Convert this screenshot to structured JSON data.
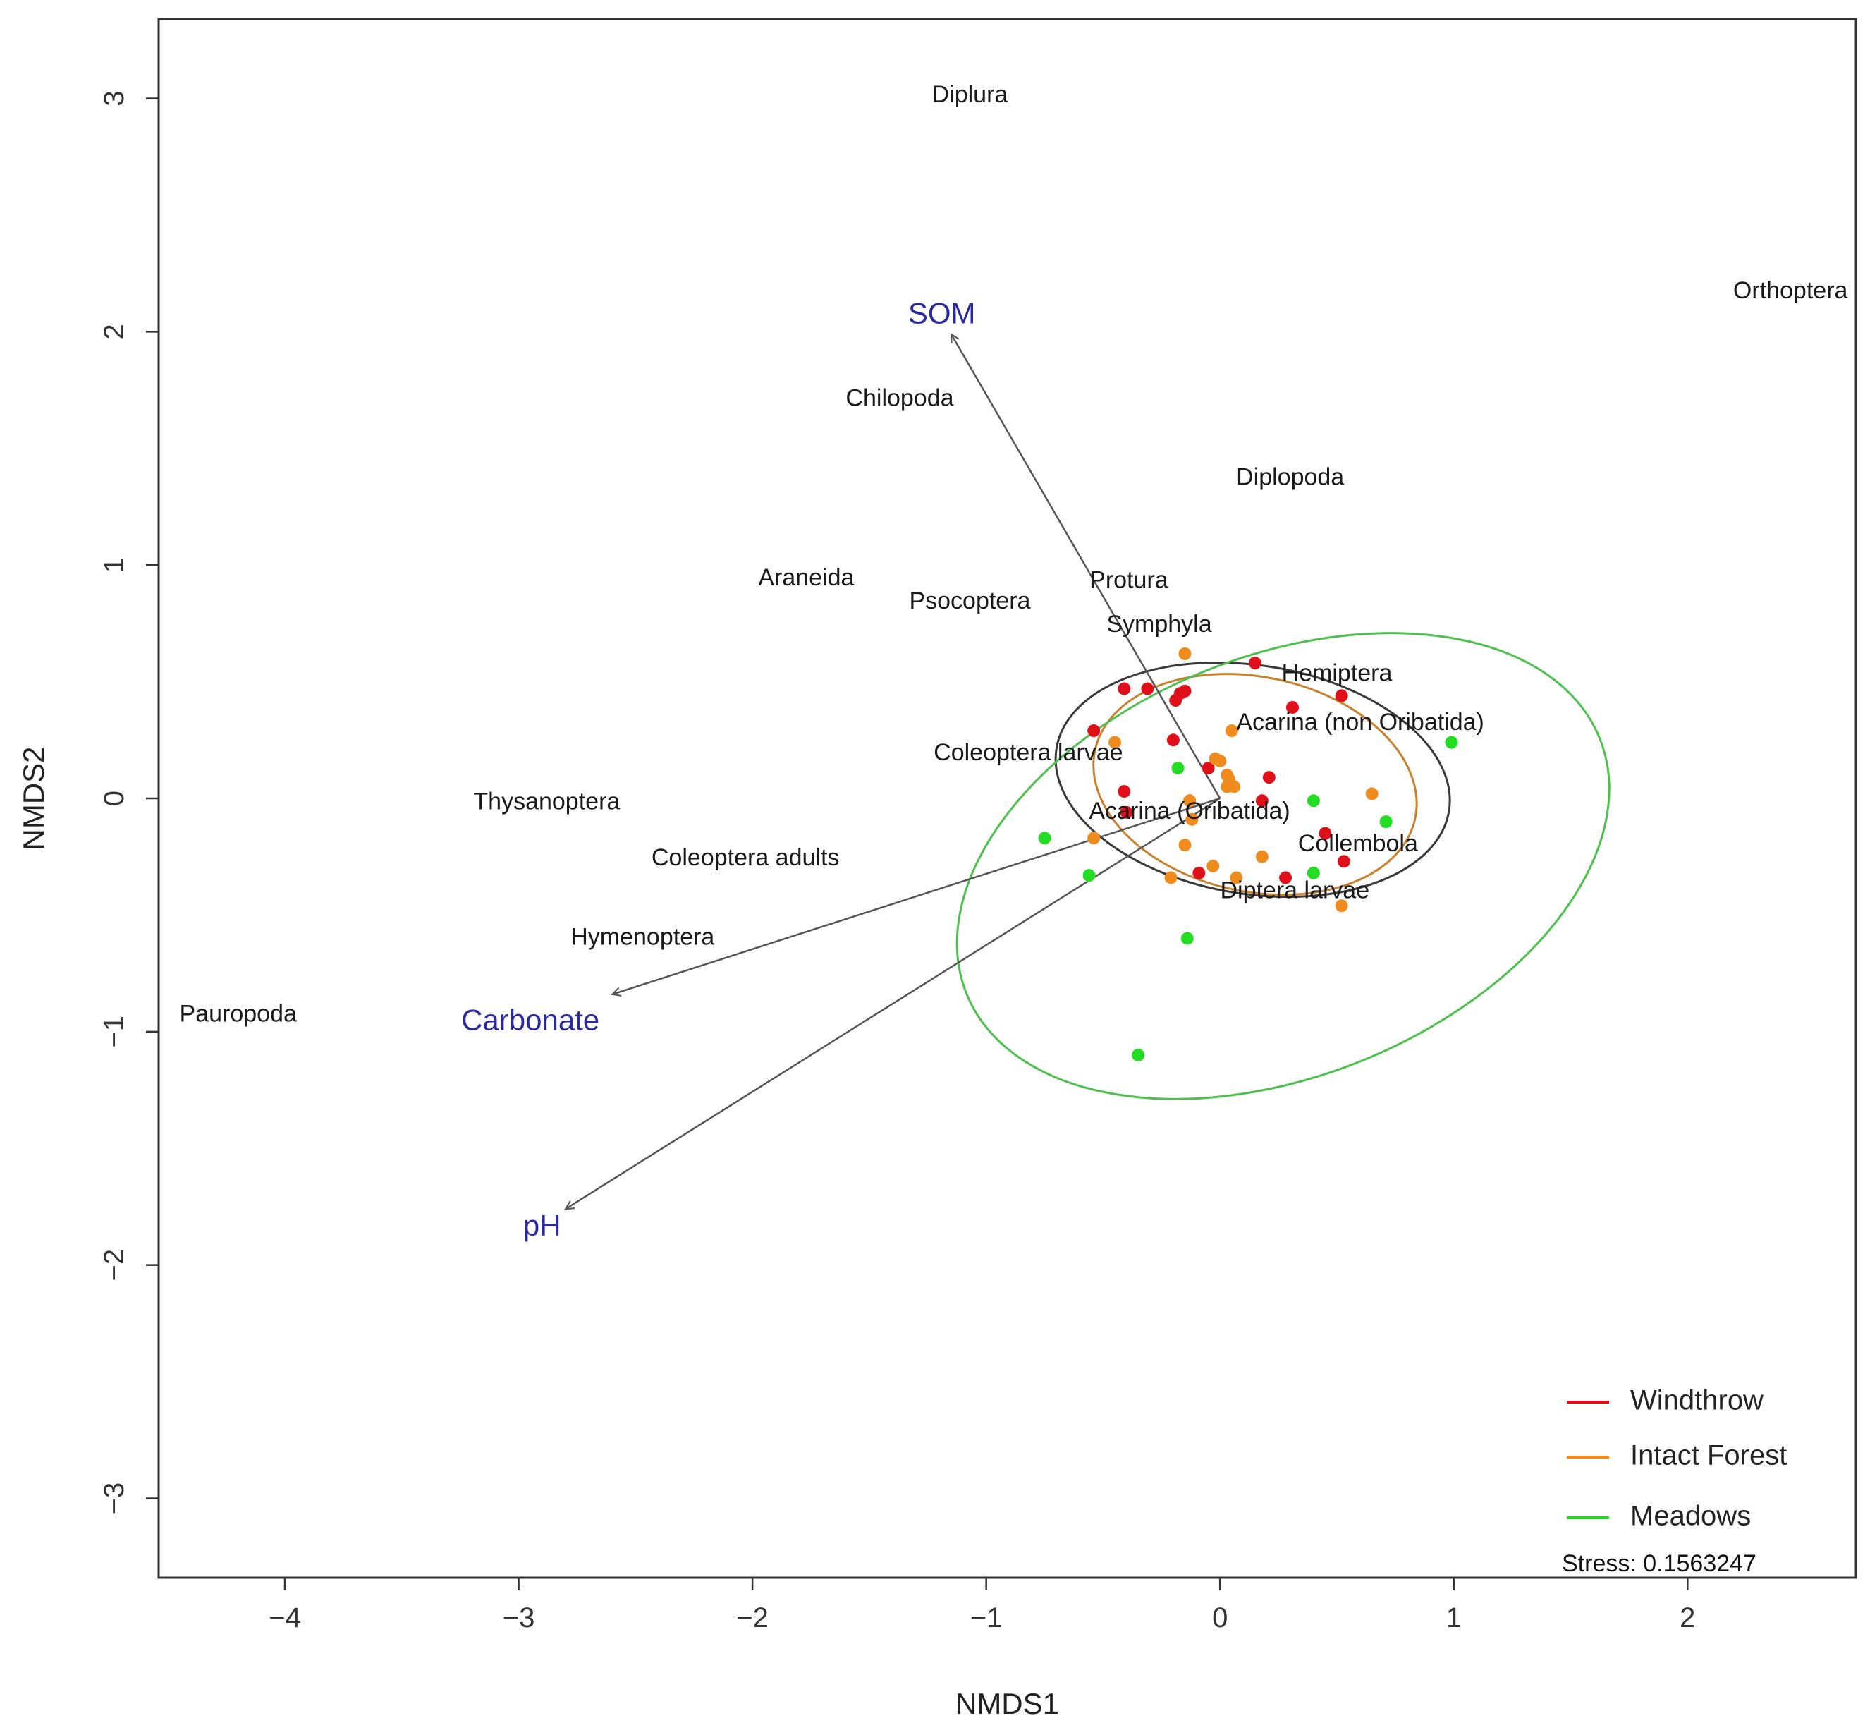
{
  "chart_data": {
    "type": "scatter",
    "title": "",
    "xlabel": "NMDS1",
    "ylabel": "NMDS2",
    "xlim": [
      -4.54,
      2.72
    ],
    "ylim": [
      -3.34,
      3.34
    ],
    "xticks": [
      -4,
      -3,
      -2,
      -1,
      0,
      1,
      2
    ],
    "yticks": [
      -3,
      -2,
      -1,
      0,
      1,
      2,
      3
    ],
    "xtick_labels": [
      "−4",
      "−3",
      "−2",
      "−1",
      "0",
      "1",
      "2"
    ],
    "ytick_labels": [
      "−3",
      "−2",
      "−1",
      "0",
      "1",
      "2",
      "3"
    ],
    "grid": false,
    "legend_position": "bottom-right",
    "stress_text": "Stress: 0.1563247",
    "env_color": "#2a2a9e",
    "arrow_color": "#555555",
    "series": [
      {
        "name": "Windthrow",
        "color": "#e0101a",
        "points": [
          [
            -0.54,
            0.29
          ],
          [
            -0.41,
            0.47
          ],
          [
            -0.31,
            0.47
          ],
          [
            -0.19,
            0.42
          ],
          [
            -0.17,
            0.45
          ],
          [
            -0.15,
            0.46
          ],
          [
            -0.2,
            0.25
          ],
          [
            -0.41,
            0.03
          ],
          [
            -0.4,
            -0.06
          ],
          [
            -0.05,
            0.13
          ],
          [
            0.15,
            0.58
          ],
          [
            0.31,
            0.39
          ],
          [
            0.52,
            0.44
          ],
          [
            0.21,
            0.09
          ],
          [
            0.18,
            -0.01
          ],
          [
            0.45,
            -0.15
          ],
          [
            0.53,
            -0.27
          ],
          [
            0.28,
            -0.34
          ],
          [
            -0.09,
            -0.32
          ],
          [
            -0.13,
            -0.01
          ]
        ]
      },
      {
        "name": "Intact Forest",
        "color": "#f08c1e",
        "points": [
          [
            -0.15,
            0.62
          ],
          [
            0.05,
            0.29
          ],
          [
            -0.45,
            0.24
          ],
          [
            -0.02,
            0.17
          ],
          [
            0.0,
            0.16
          ],
          [
            0.03,
            0.1
          ],
          [
            0.04,
            0.08
          ],
          [
            0.03,
            0.05
          ],
          [
            0.06,
            0.05
          ],
          [
            -0.13,
            -0.01
          ],
          [
            -0.12,
            -0.09
          ],
          [
            -0.54,
            -0.17
          ],
          [
            -0.15,
            -0.2
          ],
          [
            0.18,
            -0.25
          ],
          [
            -0.03,
            -0.29
          ],
          [
            -0.21,
            -0.34
          ],
          [
            0.07,
            -0.34
          ],
          [
            0.52,
            -0.46
          ],
          [
            0.65,
            0.02
          ]
        ]
      },
      {
        "name": "Meadows",
        "color": "#22dd22",
        "points": [
          [
            -0.18,
            0.13
          ],
          [
            -0.75,
            -0.17
          ],
          [
            -0.56,
            -0.33
          ],
          [
            0.4,
            -0.01
          ],
          [
            0.71,
            -0.1
          ],
          [
            0.4,
            -0.32
          ],
          [
            0.99,
            0.24
          ],
          [
            -0.14,
            -0.6
          ],
          [
            -0.35,
            -1.1
          ]
        ]
      }
    ],
    "ellipses": [
      {
        "group": "Windthrow",
        "color": "#3a3a3a",
        "center": [
          0.14,
          0.08
        ],
        "radii": [
          0.85,
          0.49
        ],
        "rotation_deg": -9
      },
      {
        "group": "Intact Forest",
        "color": "#c8822e",
        "center": [
          0.15,
          0.06
        ],
        "radii": [
          0.7,
          0.46
        ],
        "rotation_deg": -12
      },
      {
        "group": "Meadows",
        "color": "#4fbf4f",
        "center": [
          0.27,
          -0.29
        ],
        "radii": [
          1.46,
          0.9
        ],
        "rotation_deg": 22
      }
    ],
    "env_vectors": [
      {
        "name": "SOM",
        "xy": [
          -1.15,
          1.99
        ],
        "label_xy": [
          -1.19,
          2.07
        ]
      },
      {
        "name": "Carbonate",
        "xy": [
          -2.6,
          -0.84
        ],
        "label_xy": [
          -2.95,
          -0.96
        ]
      },
      {
        "name": "pH",
        "xy": [
          -2.8,
          -1.76
        ],
        "label_xy": [
          -2.9,
          -1.84
        ]
      }
    ],
    "species": [
      {
        "name": "Diplura",
        "xy": [
          -1.07,
          3.01
        ]
      },
      {
        "name": "Orthoptera",
        "xy": [
          2.44,
          2.17
        ]
      },
      {
        "name": "Chilopoda",
        "xy": [
          -1.37,
          1.71
        ]
      },
      {
        "name": "Diplopoda",
        "xy": [
          0.3,
          1.37
        ]
      },
      {
        "name": "Araneida",
        "xy": [
          -1.77,
          0.94
        ]
      },
      {
        "name": "Psocoptera",
        "xy": [
          -1.07,
          0.84
        ]
      },
      {
        "name": "Protura",
        "xy": [
          -0.39,
          0.93
        ]
      },
      {
        "name": "Symphyla",
        "xy": [
          -0.26,
          0.74
        ]
      },
      {
        "name": "Hemiptera",
        "xy": [
          0.5,
          0.53
        ]
      },
      {
        "name": "Acarina (non Oribatida)",
        "xy": [
          0.6,
          0.32
        ]
      },
      {
        "name": "Coleoptera larvae",
        "xy": [
          -0.82,
          0.19
        ]
      },
      {
        "name": "Thysanoptera",
        "xy": [
          -2.88,
          -0.02
        ]
      },
      {
        "name": "Acarina (Oribatida)",
        "xy": [
          -0.13,
          -0.06
        ]
      },
      {
        "name": "Coleoptera adults",
        "xy": [
          -2.03,
          -0.26
        ]
      },
      {
        "name": "Collembola",
        "xy": [
          0.59,
          -0.2
        ]
      },
      {
        "name": "Diptera larvae",
        "xy": [
          0.32,
          -0.4
        ]
      },
      {
        "name": "Hymenoptera",
        "xy": [
          -2.47,
          -0.6
        ]
      },
      {
        "name": "Pauropoda",
        "xy": [
          -4.2,
          -0.93
        ]
      }
    ]
  }
}
